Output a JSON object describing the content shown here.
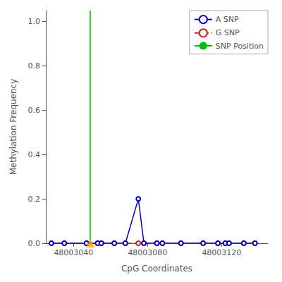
{
  "chart_data": {
    "type": "line",
    "xlabel": "CpG Coordinates",
    "ylabel": "Methylation Frequency",
    "xlim": [
      48003025,
      48003145
    ],
    "xticks": [
      48003040,
      48003080,
      48003120
    ],
    "ylim": [
      0,
      1.05
    ],
    "yticks": [
      {
        "value": 0,
        "label": "0.0"
      },
      0.2,
      0.4,
      0.6,
      0.8,
      {
        "value": 1,
        "label": "1.0"
      }
    ],
    "grid": false,
    "legend": "upper right",
    "series": [
      {
        "name": "A SNP",
        "type": "line",
        "color": "#0000cc",
        "marker": "circle",
        "line_style": "solid",
        "x": [
          48003028,
          48003035,
          48003047,
          48003053,
          48003055,
          48003062,
          48003068,
          48003075,
          48003078,
          48003085,
          48003088,
          48003098,
          48003110,
          48003118,
          48003122,
          48003124,
          48003132,
          48003138
        ],
        "values": [
          0.0,
          0.0,
          0.0,
          0.0,
          0.0,
          0.0,
          0.0,
          0.2,
          0.0,
          0.0,
          0.0,
          0.0,
          0.0,
          0.0,
          0.0,
          0.0,
          0.0,
          0.0
        ]
      },
      {
        "name": "G SNP",
        "type": "line",
        "color": "#cc2222",
        "marker": "circle",
        "line_style": "dashed",
        "x": [
          48003028,
          48003035,
          48003047,
          48003053,
          48003055,
          48003062,
          48003068,
          48003075,
          48003078,
          48003085,
          48003088,
          48003098,
          48003110,
          48003118,
          48003122,
          48003124,
          48003132,
          48003138
        ],
        "values": [
          0.0,
          0.0,
          0.0,
          0.0,
          0.0,
          0.0,
          0.0,
          0.0,
          0.0,
          0.0,
          0.0,
          0.0,
          0.0,
          0.0,
          0.0,
          0.0,
          0.0,
          0.0
        ]
      },
      {
        "name": "SNP Position",
        "type": "vline",
        "color": "#00bb00",
        "line_style": "solid",
        "x": [
          48003049
        ]
      },
      {
        "type": "scatter",
        "marker": "triangle",
        "color": "#FFA500",
        "x": [
          48003049
        ],
        "values": [
          0.0
        ]
      }
    ]
  }
}
